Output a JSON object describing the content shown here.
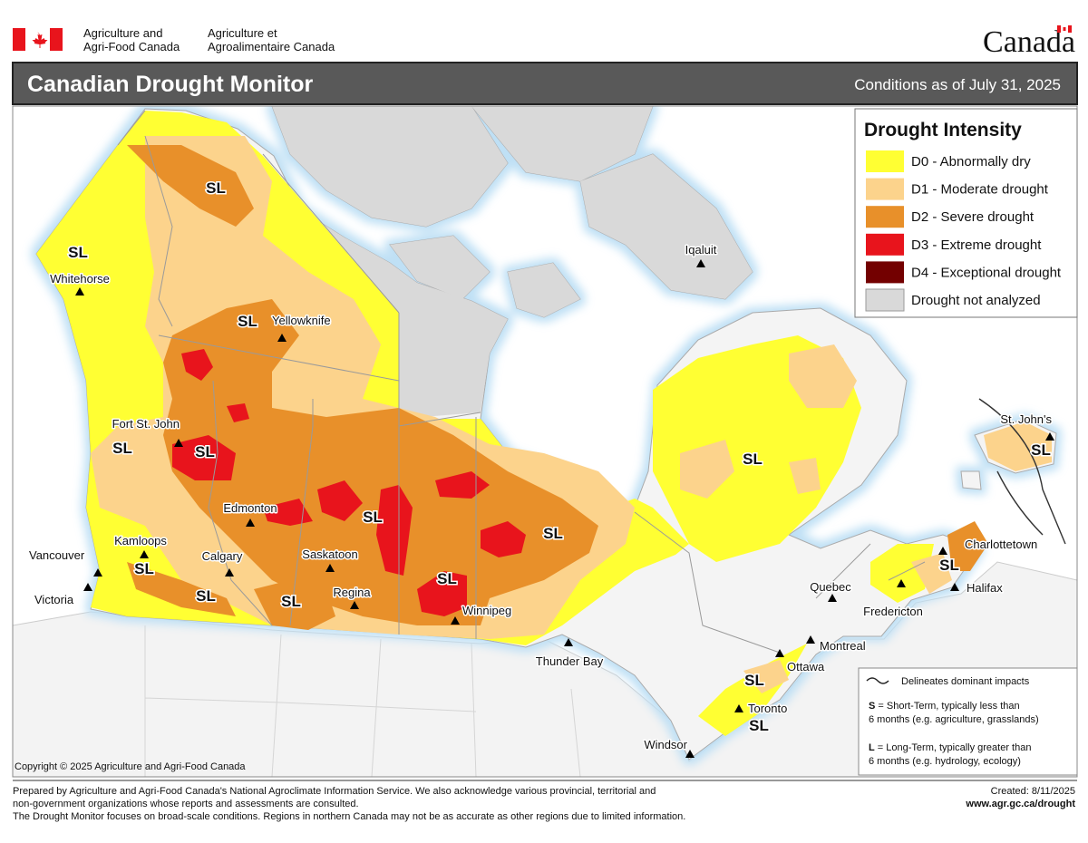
{
  "header": {
    "dept_en": [
      "Agriculture and",
      "Agri-Food Canada"
    ],
    "dept_fr": [
      "Agriculture et",
      "Agroalimentaire Canada"
    ],
    "wordmark": "Canada"
  },
  "title_bar": {
    "title": "Canadian Drought Monitor",
    "conditions": "Conditions as of July 31, 2025"
  },
  "legend": {
    "title": "Drought Intensity",
    "items": [
      {
        "label": "D0 - Abnormally dry",
        "color": "#ffff33"
      },
      {
        "label": "D1 - Moderate drought",
        "color": "#fcd38c"
      },
      {
        "label": "D2 - Severe drought",
        "color": "#e8902a"
      },
      {
        "label": "D3 - Extreme drought",
        "color": "#e8141c"
      },
      {
        "label": "D4 - Exceptional drought",
        "color": "#730000"
      },
      {
        "label": "Drought not analyzed",
        "color": "#d9d9d9"
      }
    ]
  },
  "cities": [
    "Whitehorse",
    "Yellowknife",
    "Iqaluit",
    "Fort St. John",
    "Edmonton",
    "Kamloops",
    "Calgary",
    "Vancouver",
    "Victoria",
    "Saskatoon",
    "Regina",
    "Winnipeg",
    "Thunder Bay",
    "Windsor",
    "Toronto",
    "Ottawa",
    "Montreal",
    "Quebec",
    "Fredericton",
    "Halifax",
    "Charlottetown",
    "St. John's"
  ],
  "impact_labels": [
    "SL",
    "SL",
    "SL",
    "SL",
    "SL",
    "SL",
    "SL",
    "SL",
    "SL",
    "SL",
    "SL",
    "SL",
    "SL",
    "SL",
    "SL",
    "SL"
  ],
  "notes": {
    "line_label": "Delineates dominant impacts",
    "short": {
      "key": "S",
      "text": [
        "= Short-Term, typically less than",
        "6 months (e.g. agriculture, grasslands)"
      ]
    },
    "long": {
      "key": "L",
      "text": [
        "= Long-Term, typically greater  than",
        "6 months (e.g. hydrology, ecology)"
      ]
    }
  },
  "copyright": "Copyright © 2025 Agriculture and Agri-Food Canada",
  "footer": {
    "lines": [
      "Prepared by Agriculture and Agri-Food Canada's National Agroclimate Information Service.  We also acknowledge various provincial, territorial and",
      "non-government organizations whose reports and assessments are consulted.",
      "The Drought Monitor focuses on broad-scale conditions.  Regions in northern Canada may not be as accurate as other regions due to limited information."
    ],
    "created": "Created: 8/11/2025",
    "url": "www.agr.gc.ca/drought"
  }
}
